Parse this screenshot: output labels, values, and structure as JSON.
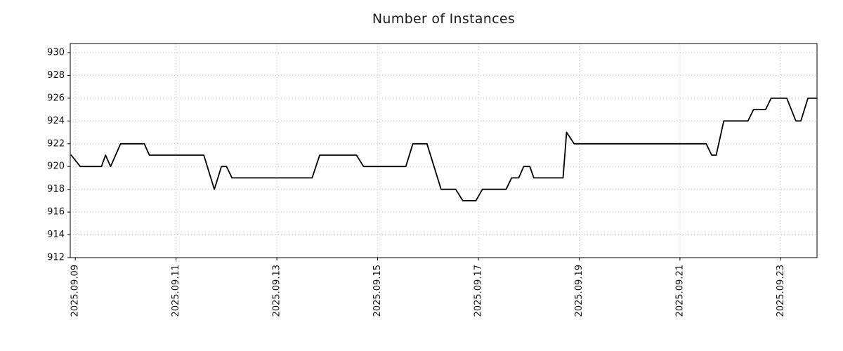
{
  "title": "Number of Instances",
  "chart_data": {
    "type": "line",
    "title": "Number of Instances",
    "series_name": "Number of Instances",
    "line_color": "#000000",
    "grid": true,
    "grid_color": "#bdbdbd",
    "axis_color": "#000000",
    "legend": "none",
    "x_axis": {
      "label": "",
      "tick_labels": [
        "2025.09.09",
        "2025.09.11",
        "2025.09.13",
        "2025.09.15",
        "2025.09.17",
        "2025.09.19",
        "2025.09.21",
        "2025.09.23"
      ],
      "tick_days": [
        0,
        2,
        4,
        6,
        8,
        10,
        12,
        14
      ],
      "range_days": [
        -0.1,
        14.72
      ]
    },
    "y_axis": {
      "label": "",
      "ticks": [
        912,
        914,
        916,
        918,
        920,
        922,
        924,
        926,
        928,
        930
      ],
      "range": [
        912,
        930.8
      ]
    },
    "points_day_value": [
      [
        -0.08,
        921
      ],
      [
        0.1,
        920
      ],
      [
        0.52,
        920
      ],
      [
        0.6,
        921
      ],
      [
        0.7,
        920
      ],
      [
        0.9,
        922
      ],
      [
        1.37,
        922
      ],
      [
        1.47,
        921
      ],
      [
        2.55,
        921
      ],
      [
        2.76,
        918
      ],
      [
        2.9,
        920
      ],
      [
        3.0,
        920
      ],
      [
        3.11,
        919
      ],
      [
        4.7,
        919
      ],
      [
        4.85,
        921
      ],
      [
        5.58,
        921
      ],
      [
        5.72,
        920
      ],
      [
        6.56,
        920
      ],
      [
        6.7,
        922
      ],
      [
        6.98,
        922
      ],
      [
        7.26,
        918
      ],
      [
        7.55,
        918
      ],
      [
        7.69,
        917
      ],
      [
        7.95,
        917
      ],
      [
        8.08,
        918
      ],
      [
        8.55,
        918
      ],
      [
        8.66,
        919
      ],
      [
        8.8,
        919
      ],
      [
        8.9,
        920
      ],
      [
        9.02,
        920
      ],
      [
        9.1,
        919
      ],
      [
        9.5,
        919
      ],
      [
        9.68,
        919
      ],
      [
        9.75,
        923
      ],
      [
        9.9,
        922
      ],
      [
        12.52,
        922
      ],
      [
        12.63,
        921
      ],
      [
        12.72,
        921
      ],
      [
        12.87,
        924
      ],
      [
        13.35,
        924
      ],
      [
        13.46,
        925
      ],
      [
        13.7,
        925
      ],
      [
        13.81,
        926
      ],
      [
        14.12,
        926
      ],
      [
        14.3,
        924
      ],
      [
        14.4,
        924
      ],
      [
        14.54,
        926
      ],
      [
        14.72,
        926
      ]
    ]
  }
}
